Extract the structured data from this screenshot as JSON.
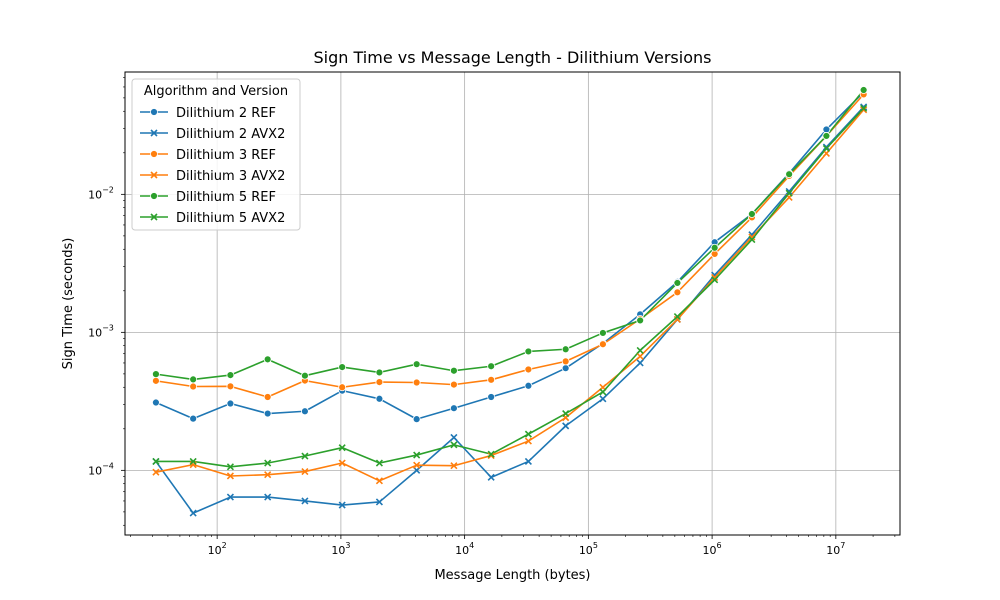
{
  "chart_data": {
    "type": "line",
    "title": "Sign Time vs Message Length - Dilithium Versions",
    "xlabel": "Message Length (bytes)",
    "ylabel": "Sign Time (seconds)",
    "xscale": "log",
    "yscale": "log",
    "xlim": [
      18,
      33000000
    ],
    "ylim": [
      3.4e-05,
      0.077
    ],
    "grid": true,
    "x_ticks": [
      {
        "value": 100,
        "base": "10",
        "exp": "2"
      },
      {
        "value": 1000,
        "base": "10",
        "exp": "3"
      },
      {
        "value": 10000,
        "base": "10",
        "exp": "4"
      },
      {
        "value": 100000,
        "base": "10",
        "exp": "5"
      },
      {
        "value": 1000000,
        "base": "10",
        "exp": "6"
      },
      {
        "value": 10000000,
        "base": "10",
        "exp": "7"
      }
    ],
    "y_ticks": [
      {
        "value": 0.0001,
        "base": "10",
        "exp": "−4"
      },
      {
        "value": 0.001,
        "base": "10",
        "exp": "−3"
      },
      {
        "value": 0.01,
        "base": "10",
        "exp": "−2"
      }
    ],
    "legend": {
      "title": "Algorithm and Version",
      "position": "top-left"
    },
    "x": [
      32,
      64,
      128,
      256,
      512,
      1024,
      2048,
      4096,
      8192,
      16384,
      32768,
      65536,
      131072,
      262144,
      524288,
      1048576,
      2097152,
      4194304,
      8388608,
      16777216
    ],
    "series": [
      {
        "name": "Dilithium 2 REF",
        "color": "#1f77b4",
        "marker": "circle",
        "values": [
          0.00031,
          0.000237,
          0.000305,
          0.000258,
          0.000268,
          0.000378,
          0.00033,
          0.000235,
          0.000282,
          0.00034,
          0.00041,
          0.00055,
          0.00083,
          0.00135,
          0.00232,
          0.0045,
          0.0072,
          0.0142,
          0.0295,
          0.055
        ]
      },
      {
        "name": "Dilithium 2 AVX2",
        "color": "#1f77b4",
        "marker": "x",
        "values": [
          0.000116,
          4.9e-05,
          6.4e-05,
          6.4e-05,
          6e-05,
          5.6e-05,
          5.9e-05,
          0.0001,
          0.000173,
          8.9e-05,
          0.000116,
          0.00021,
          0.00033,
          0.0006,
          0.00124,
          0.0026,
          0.0051,
          0.0105,
          0.022,
          0.043
        ]
      },
      {
        "name": "Dilithium 3 REF",
        "color": "#ff7f0e",
        "marker": "circle",
        "values": [
          0.000445,
          0.000405,
          0.000406,
          0.00034,
          0.000447,
          0.0004,
          0.000436,
          0.000433,
          0.000418,
          0.000453,
          0.000538,
          0.000616,
          0.00082,
          0.00125,
          0.00195,
          0.0037,
          0.0068,
          0.0136,
          0.0265,
          0.053
        ]
      },
      {
        "name": "Dilithium 3 AVX2",
        "color": "#ff7f0e",
        "marker": "x",
        "values": [
          9.7e-05,
          0.00011,
          9.1e-05,
          9.3e-05,
          9.8e-05,
          0.000113,
          8.4e-05,
          0.000109,
          0.000108,
          0.000128,
          0.000163,
          0.000241,
          0.0004,
          0.00067,
          0.00124,
          0.0025,
          0.0049,
          0.0095,
          0.0198,
          0.041
        ]
      },
      {
        "name": "Dilithium 5 REF",
        "color": "#2ca02c",
        "marker": "circle",
        "values": [
          0.000498,
          0.000456,
          0.00049,
          0.000637,
          0.000485,
          0.00056,
          0.000512,
          0.000588,
          0.000527,
          0.000568,
          0.000727,
          0.000754,
          0.00099,
          0.00122,
          0.00228,
          0.0041,
          0.0072,
          0.014,
          0.0265,
          0.057
        ]
      },
      {
        "name": "Dilithium 5 AVX2",
        "color": "#2ca02c",
        "marker": "x",
        "values": [
          0.000116,
          0.000116,
          0.000106,
          0.000113,
          0.000127,
          0.000146,
          0.000113,
          0.000129,
          0.000153,
          0.000131,
          0.000183,
          0.000258,
          0.00037,
          0.00074,
          0.0013,
          0.0024,
          0.0047,
          0.0102,
          0.0215,
          0.042
        ]
      }
    ]
  }
}
